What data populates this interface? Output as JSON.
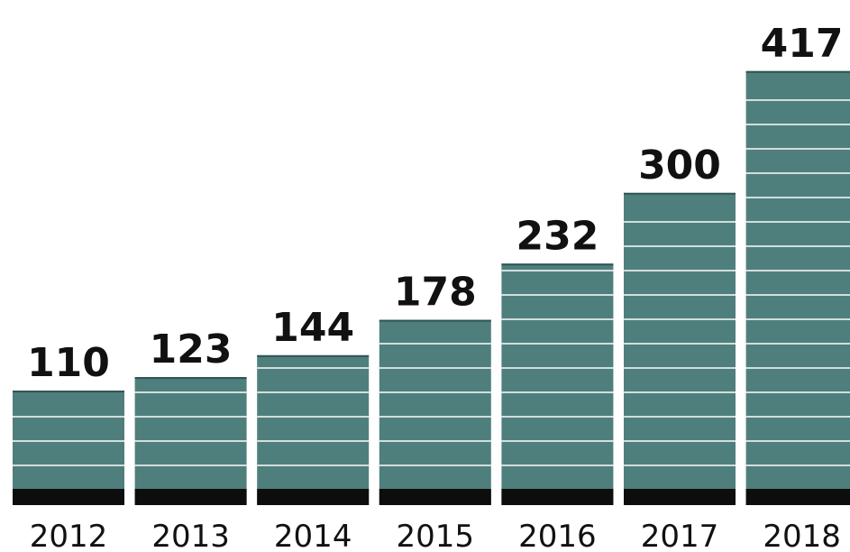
{
  "chart_data": {
    "type": "bar",
    "categories": [
      "2012",
      "2013",
      "2014",
      "2015",
      "2016",
      "2017",
      "2018"
    ],
    "values": [
      110,
      123,
      144,
      178,
      232,
      300,
      417
    ],
    "value_labels": [
      "110",
      "123",
      "144",
      "178",
      "232",
      "300",
      "417"
    ],
    "title": "",
    "xlabel": "",
    "ylabel": "",
    "ylim": [
      0,
      440
    ],
    "grid": false,
    "legend": "none",
    "colors": {
      "bar": "#4f7f7c",
      "bar_stripe": "#e8eeed",
      "baseline": "#0d0d0d",
      "text": "#111111"
    }
  }
}
